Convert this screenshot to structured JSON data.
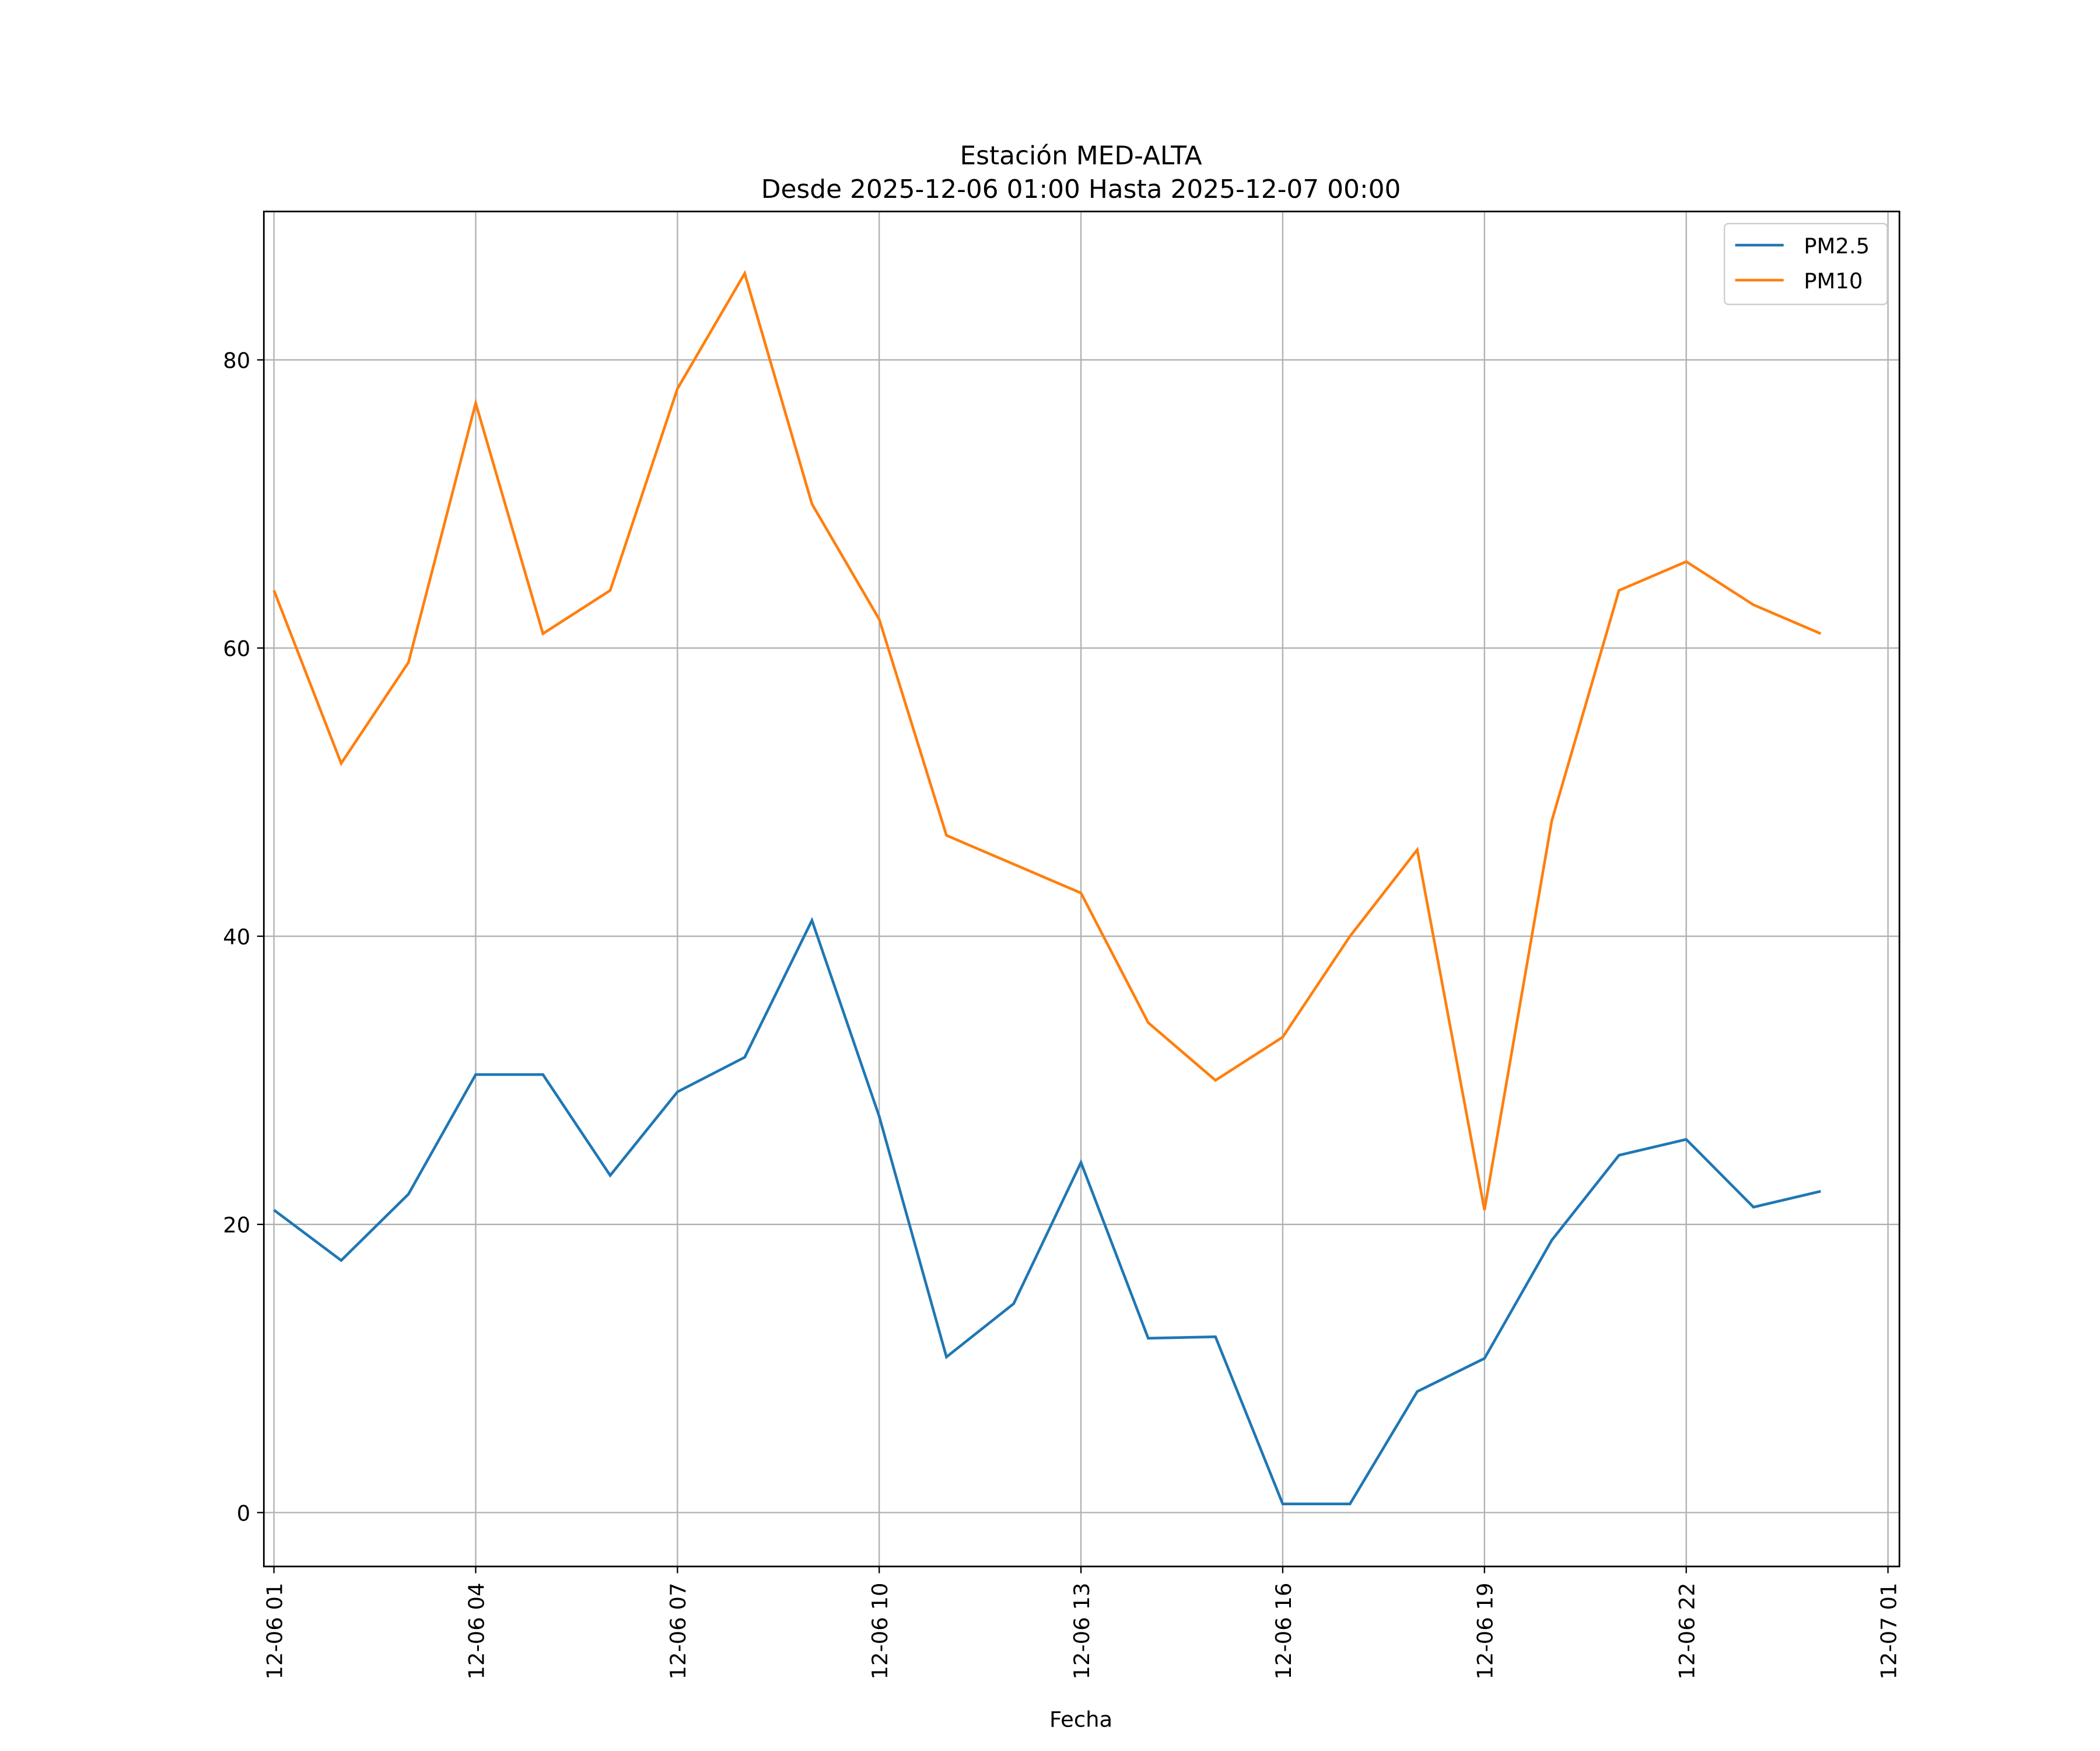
{
  "chart_data": {
    "type": "line",
    "title": "Estación MED-ALTA",
    "subtitle": "Desde 2025-12-06 01:00 Hasta 2025-12-07 00:00",
    "xlabel": "Fecha",
    "ylabel": "",
    "x_hours": [
      1,
      2,
      3,
      4,
      5,
      6,
      7,
      8,
      9,
      10,
      11,
      12,
      13,
      14,
      15,
      16,
      17,
      18,
      19,
      20,
      21,
      22,
      23,
      24
    ],
    "series": [
      {
        "name": "PM2.5",
        "color": "#1f77b4",
        "values": [
          21.0,
          17.5,
          22.1,
          30.4,
          30.4,
          23.4,
          29.2,
          31.6,
          41.1,
          27.5,
          10.8,
          14.5,
          24.3,
          12.1,
          12.2,
          0.6,
          0.6,
          8.4,
          10.7,
          18.9,
          24.8,
          25.9,
          21.2,
          22.3
        ]
      },
      {
        "name": "PM10",
        "color": "#ff7f0e",
        "values": [
          64,
          52,
          59,
          77,
          61,
          64,
          78,
          86,
          70,
          62,
          47,
          45,
          43,
          34,
          30,
          33,
          40,
          46,
          21,
          48,
          64,
          66,
          63,
          61
        ]
      }
    ],
    "xticks": [
      {
        "hour": 1,
        "label": "12-06 01"
      },
      {
        "hour": 4,
        "label": "12-06 04"
      },
      {
        "hour": 7,
        "label": "12-06 07"
      },
      {
        "hour": 10,
        "label": "12-06 10"
      },
      {
        "hour": 13,
        "label": "12-06 13"
      },
      {
        "hour": 16,
        "label": "12-06 16"
      },
      {
        "hour": 19,
        "label": "12-06 19"
      },
      {
        "hour": 22,
        "label": "12-06 22"
      },
      {
        "hour": 25,
        "label": "12-07 01"
      }
    ],
    "yticks": [
      0,
      20,
      40,
      60,
      80
    ],
    "xlim": [
      0.85,
      25.17
    ],
    "ylim": [
      -3.74,
      90.3
    ],
    "grid": true,
    "legend": "top-right"
  }
}
